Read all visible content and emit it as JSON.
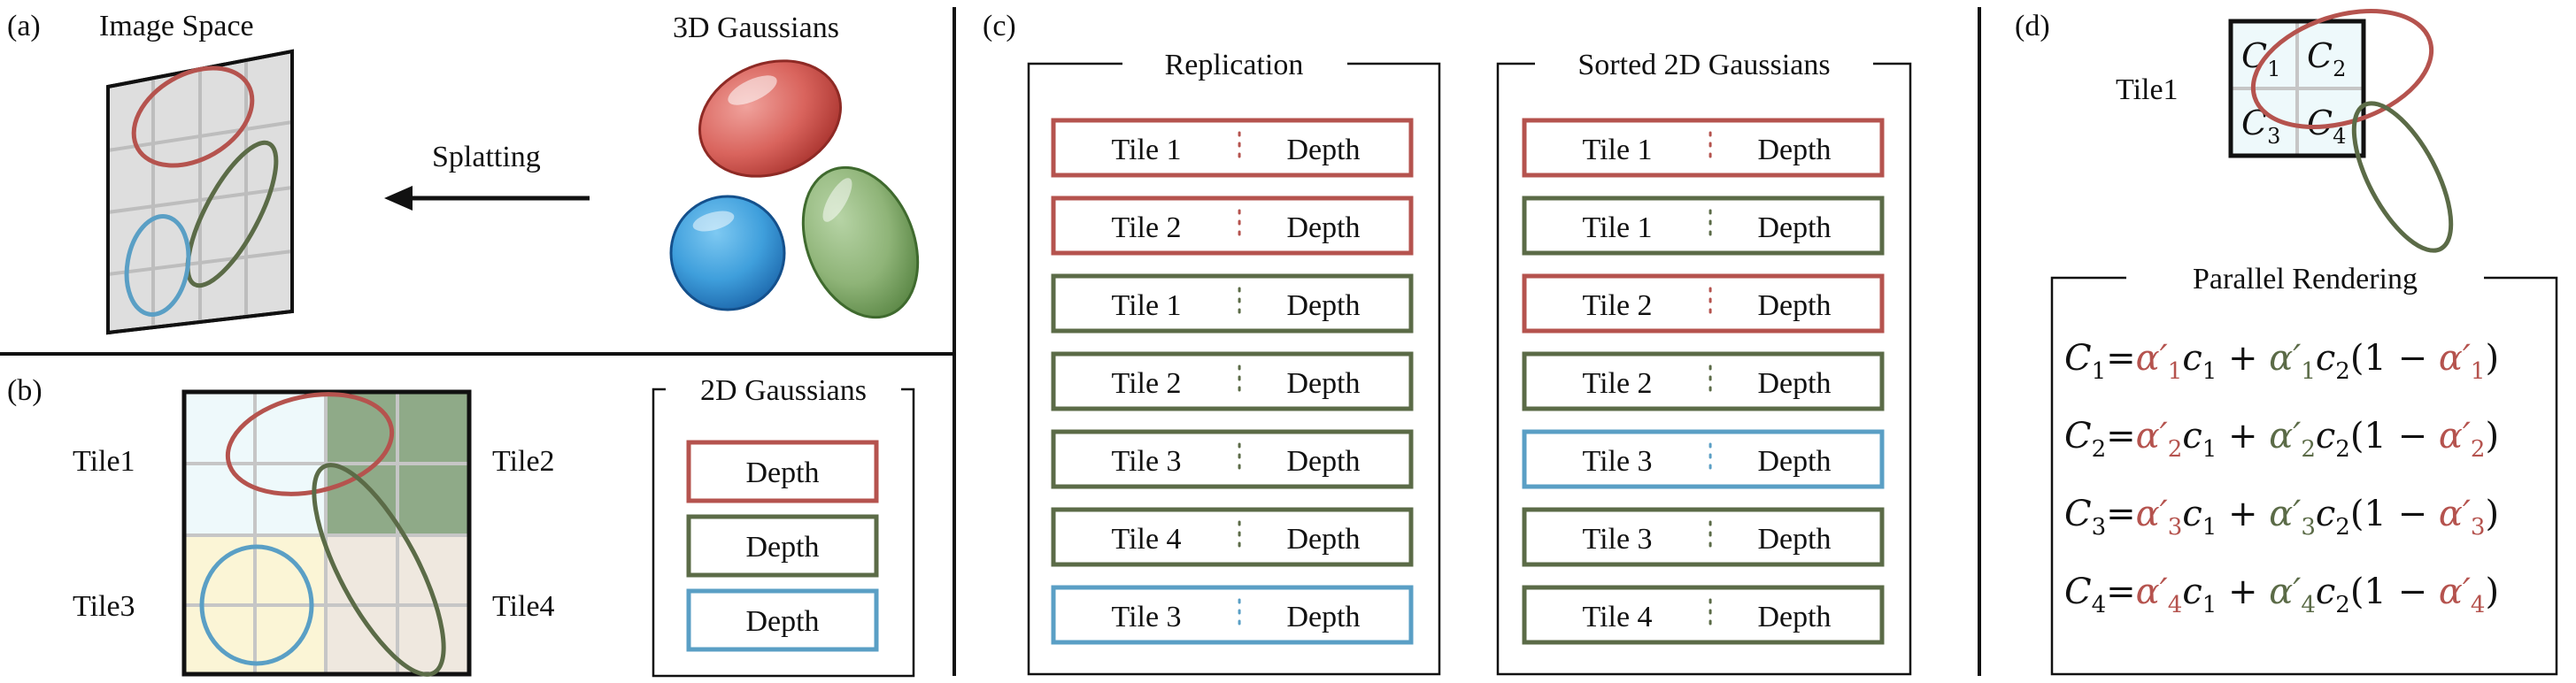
{
  "colors": {
    "red": "#b5534e",
    "green": "#5b6b47",
    "blue": "#5a9fc5",
    "dark": "#111111",
    "grid_fill": "#dadada",
    "tile_cyan": "#eef9fb",
    "tile_green": "#8faa88",
    "tile_yellow": "#fbf5d6",
    "tile_beige": "#efe8df"
  },
  "panel_a": {
    "label": "(a)",
    "image_space": "Image Space",
    "gaussians_3d": "3D Gaussians",
    "splatting": "Splatting"
  },
  "panel_b": {
    "label": "(b)",
    "tiles": [
      "Tile1",
      "Tile2",
      "Tile3",
      "Tile4"
    ],
    "legend_title": "2D Gaussians",
    "legend_items": [
      {
        "text": "Depth",
        "color": "red"
      },
      {
        "text": "Depth",
        "color": "green"
      },
      {
        "text": "Depth",
        "color": "blue"
      }
    ]
  },
  "panel_c": {
    "label": "(c)",
    "replication": {
      "title": "Replication",
      "rows": [
        {
          "tile": "Tile 1",
          "depth": "Depth",
          "color": "red"
        },
        {
          "tile": "Tile 2",
          "depth": "Depth",
          "color": "red"
        },
        {
          "tile": "Tile 1",
          "depth": "Depth",
          "color": "green"
        },
        {
          "tile": "Tile 2",
          "depth": "Depth",
          "color": "green"
        },
        {
          "tile": "Tile 3",
          "depth": "Depth",
          "color": "green"
        },
        {
          "tile": "Tile 4",
          "depth": "Depth",
          "color": "green"
        },
        {
          "tile": "Tile 3",
          "depth": "Depth",
          "color": "blue"
        }
      ]
    },
    "sorted": {
      "title": "Sorted 2D Gaussians",
      "rows": [
        {
          "tile": "Tile 1",
          "depth": "Depth",
          "color": "red"
        },
        {
          "tile": "Tile 1",
          "depth": "Depth",
          "color": "green"
        },
        {
          "tile": "Tile 2",
          "depth": "Depth",
          "color": "red"
        },
        {
          "tile": "Tile 2",
          "depth": "Depth",
          "color": "green"
        },
        {
          "tile": "Tile 3",
          "depth": "Depth",
          "color": "blue"
        },
        {
          "tile": "Tile 3",
          "depth": "Depth",
          "color": "green"
        },
        {
          "tile": "Tile 4",
          "depth": "Depth",
          "color": "green"
        }
      ]
    }
  },
  "panel_d": {
    "label": "(d)",
    "tile_label": "Tile1",
    "cells": [
      {
        "letter": "C",
        "sub": "1"
      },
      {
        "letter": "C",
        "sub": "2"
      },
      {
        "letter": "C",
        "sub": "3"
      },
      {
        "letter": "C",
        "sub": "4"
      }
    ],
    "rendering_title": "Parallel Rendering",
    "equations": [
      {
        "lhs": "C",
        "sub": "1",
        "eq": "=",
        "alpha": "α′",
        "c1": "c",
        "c1sub": "1",
        "plus": " + ",
        "c2": "c",
        "c2sub": "2",
        "open": "(1 − ",
        "close": ")"
      },
      {
        "lhs": "C",
        "sub": "2",
        "eq": "=",
        "alpha": "α′",
        "c1": "c",
        "c1sub": "1",
        "plus": " + ",
        "c2": "c",
        "c2sub": "2",
        "open": "(1 − ",
        "close": ")"
      },
      {
        "lhs": "C",
        "sub": "3",
        "eq": "=",
        "alpha": "α′",
        "c1": "c",
        "c1sub": "1",
        "plus": " + ",
        "c2": "c",
        "c2sub": "2",
        "open": "(1 − ",
        "close": ")"
      },
      {
        "lhs": "C",
        "sub": "4",
        "eq": "=",
        "alpha": "α′",
        "c1": "c",
        "c1sub": "1",
        "plus": " + ",
        "c2": "c",
        "c2sub": "2",
        "open": "(1 − ",
        "close": ")"
      }
    ]
  }
}
